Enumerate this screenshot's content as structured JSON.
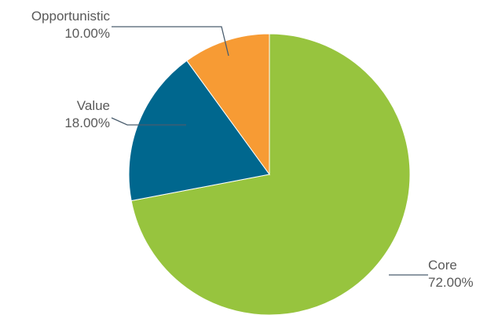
{
  "chart_data": {
    "type": "pie",
    "title": "",
    "start_angle_deg": 0,
    "direction": "clockwise",
    "slices": [
      {
        "label": "Core",
        "value": 72.0,
        "value_label": "72.00%",
        "color": "#97c43e"
      },
      {
        "label": "Value",
        "value": 18.0,
        "value_label": "18.00%",
        "color": "#00678e"
      },
      {
        "label": "Opportunistic",
        "value": 10.0,
        "value_label": "10.00%",
        "color": "#f79b34"
      }
    ],
    "legend": "none"
  }
}
